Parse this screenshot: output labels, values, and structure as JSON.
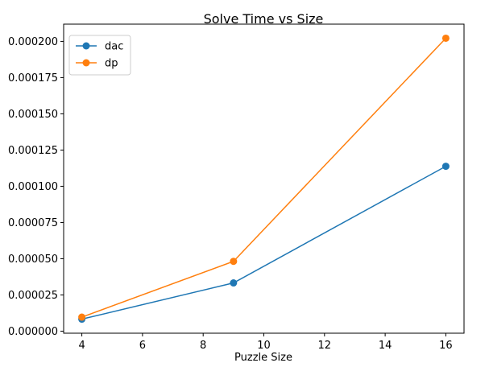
{
  "chart_data": {
    "type": "line",
    "title": "Solve Time vs Size",
    "xlabel": "Puzzle Size",
    "ylabel": "",
    "x": [
      4,
      9,
      16
    ],
    "series": [
      {
        "name": "dac",
        "color": "#1f77b4",
        "marker": "circle",
        "values": [
          8.3e-06,
          3.33e-05,
          0.0001138
        ]
      },
      {
        "name": "dp",
        "color": "#ff7f0e",
        "marker": "circle",
        "values": [
          9.7e-06,
          4.82e-05,
          0.0002022
        ]
      }
    ],
    "xlim": [
      3.4,
      16.6
    ],
    "ylim": [
      -1.4e-06,
      0.0002119
    ],
    "xticks": [
      4,
      6,
      8,
      10,
      12,
      14,
      16
    ],
    "yticks": [
      0,
      2.5e-05,
      5e-05,
      7.5e-05,
      0.0001,
      0.000125,
      0.00015,
      0.000175,
      0.0002
    ],
    "xtick_labels": [
      "4",
      "6",
      "8",
      "10",
      "12",
      "14",
      "16"
    ],
    "ytick_labels": [
      "0.000000",
      "0.000025",
      "0.000050",
      "0.000075",
      "0.000100",
      "0.000125",
      "0.000150",
      "0.000175",
      "0.000200"
    ],
    "grid": false,
    "legend_position": "top-left"
  }
}
